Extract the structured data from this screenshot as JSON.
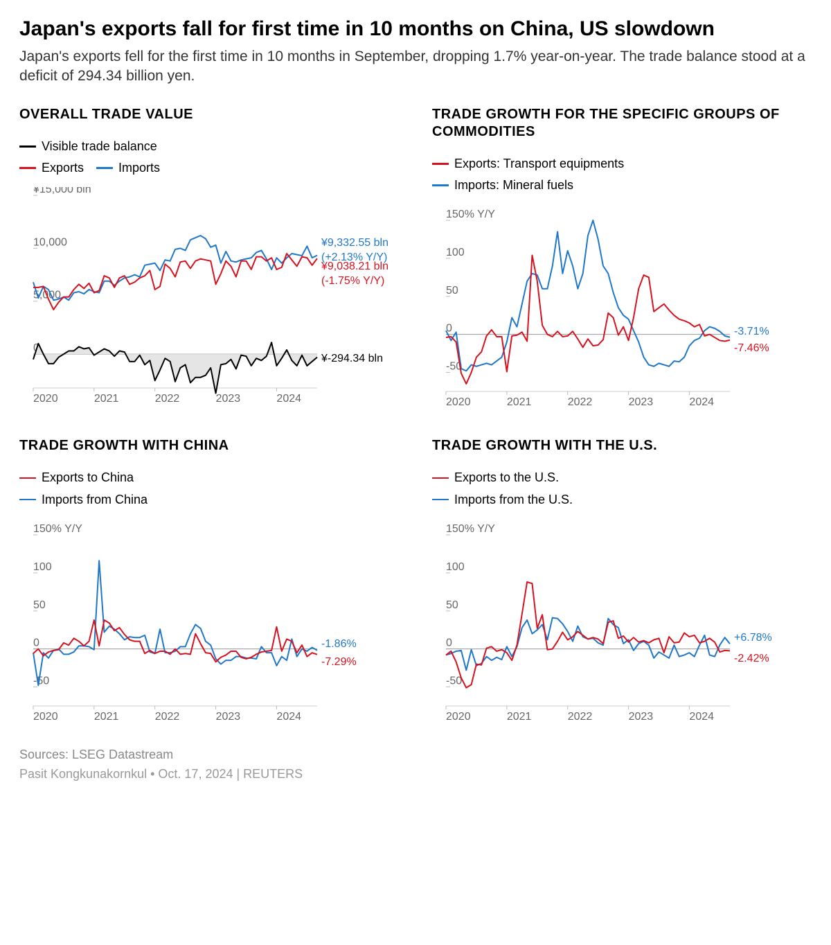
{
  "headline": "Japan's exports fall for first time in 10 months on China, US slowdown",
  "dek": "Japan's exports fell for the first time in 10 months in September, dropping 1.7% year-on-year. The trade balance stood at a deficit of 294.34 billion yen.",
  "colors": {
    "black": "#000000",
    "red": "#d6121f",
    "blue": "#1f77c9",
    "axis": "#666666",
    "grid": "#d0d0d0",
    "fill_grey": "#e5e5e5",
    "footer": "#888888"
  },
  "x_axis": {
    "years": [
      "2020",
      "2021",
      "2022",
      "2023",
      "2024"
    ],
    "n_points": 57
  },
  "panels": {
    "overall": {
      "title": "OVERALL TRADE VALUE",
      "legend": [
        {
          "color": "#000000",
          "label": "Visible trade balance"
        },
        {
          "color": "#d6121f",
          "label": "Exports"
        },
        {
          "color": "#1f77c9",
          "label": "Imports"
        }
      ],
      "y_label": "¥15,000 bln",
      "y_ticks": [
        0,
        5000,
        10000,
        15000
      ],
      "y_tick_labels": [
        "0",
        "5,000",
        "10,000",
        "¥15,000 bln"
      ],
      "ylim": [
        -3200,
        15000
      ],
      "series": {
        "exports": [
          6300,
          6300,
          6400,
          5200,
          4200,
          4900,
          5400,
          5400,
          6100,
          6600,
          6200,
          6700,
          5800,
          6000,
          7400,
          7200,
          6300,
          7200,
          7400,
          6600,
          6800,
          7200,
          7400,
          7900,
          6100,
          6400,
          8500,
          8100,
          7300,
          8700,
          8800,
          8100,
          8800,
          9000,
          8900,
          8800,
          6600,
          7600,
          8800,
          8300,
          7300,
          8800,
          8800,
          8000,
          9200,
          9200,
          8800,
          9100,
          8000,
          8200,
          9500,
          8900,
          8300,
          9200,
          9100,
          8400,
          9038
        ],
        "imports": [
          6800,
          5300,
          6400,
          6100,
          5100,
          5200,
          5400,
          5100,
          5800,
          5900,
          5700,
          6100,
          5900,
          5800,
          6900,
          6900,
          6500,
          6900,
          7200,
          7300,
          7500,
          7300,
          8400,
          8500,
          8600,
          7900,
          8900,
          8800,
          9900,
          10000,
          9800,
          10800,
          11000,
          11200,
          10900,
          10100,
          10300,
          8600,
          9700,
          8800,
          8700,
          8900,
          9000,
          9100,
          9600,
          9800,
          9000,
          8000,
          9100,
          8600,
          9100,
          9500,
          9400,
          9300,
          10200,
          9100,
          9333
        ],
        "balance": [
          -500,
          1000,
          0,
          -900,
          -900,
          -300,
          0,
          300,
          300,
          700,
          500,
          600,
          -100,
          200,
          500,
          300,
          -200,
          300,
          200,
          -700,
          -700,
          -100,
          -1000,
          -600,
          -2500,
          -1500,
          -400,
          -700,
          -2600,
          -1300,
          -1000,
          -2700,
          -2200,
          -2200,
          -2000,
          -1300,
          -3700,
          -1000,
          -900,
          -500,
          -1400,
          -100,
          -200,
          -1100,
          -400,
          -600,
          -200,
          1100,
          -1100,
          -400,
          400,
          -600,
          -1100,
          -100,
          -1100,
          -700,
          -294
        ]
      },
      "end_labels": {
        "imports": {
          "l1": "¥9,332.55 bln",
          "l2": "(+2.13% Y/Y)",
          "color": "#1f77c9"
        },
        "exports": {
          "l1": "¥9,038.21 bln",
          "l2": "(-1.75% Y/Y)",
          "color": "#d6121f"
        },
        "balance": {
          "l1": "¥-294.34 bln",
          "color": "#000000"
        }
      }
    },
    "commodities": {
      "title": "TRADE GROWTH FOR THE SPECIFIC GROUPS OF COMMODITIES",
      "legend": [
        {
          "color": "#d6121f",
          "label": "Exports: Transport equipments"
        },
        {
          "color": "#1f77c9",
          "label": "Imports: Mineral fuels"
        }
      ],
      "y_label": "150% Y/Y",
      "y_ticks": [
        -50,
        0,
        50,
        100,
        150
      ],
      "ylim": [
        -75,
        160
      ],
      "series": {
        "red": [
          -4,
          -3,
          -10,
          -51,
          -65,
          -50,
          -30,
          -23,
          -2,
          6,
          -3,
          -3,
          -49,
          -2,
          -1,
          3,
          -9,
          104,
          70,
          12,
          0,
          -3,
          4,
          -3,
          -2,
          4,
          -6,
          -17,
          -6,
          -15,
          -14,
          -7,
          28,
          22,
          -1,
          10,
          -8,
          22,
          60,
          78,
          75,
          30,
          35,
          40,
          32,
          25,
          20,
          18,
          15,
          10,
          13,
          -2,
          0,
          -4,
          -8,
          -9,
          -7.46
        ],
        "blue": [
          5,
          -8,
          3,
          -45,
          -48,
          -40,
          -42,
          -40,
          -38,
          -40,
          -35,
          -30,
          -10,
          22,
          10,
          40,
          70,
          80,
          78,
          60,
          60,
          90,
          135,
          80,
          110,
          90,
          60,
          80,
          130,
          150,
          125,
          90,
          80,
          55,
          35,
          25,
          20,
          5,
          -10,
          -30,
          -40,
          -42,
          -38,
          -40,
          -42,
          -35,
          -36,
          -30,
          -15,
          -8,
          -5,
          5,
          10,
          8,
          4,
          -2,
          -3.71
        ]
      },
      "end_labels": {
        "blue": {
          "l1": "-3.71%",
          "color": "#1f77c9"
        },
        "red": {
          "l1": "-7.46%",
          "color": "#d6121f"
        }
      }
    },
    "china": {
      "title": "TRADE GROWTH WITH CHINA",
      "legend": [
        {
          "color": "#d6121f",
          "label": "Exports to China"
        },
        {
          "color": "#1f77c9",
          "label": "Imports from China"
        }
      ],
      "y_label": "150% Y/Y",
      "y_ticks": [
        -50,
        0,
        50,
        100,
        150
      ],
      "ylim": [
        -75,
        160
      ],
      "series": {
        "red": [
          -6,
          0,
          -9,
          -4,
          -2,
          -1,
          8,
          5,
          14,
          10,
          4,
          10,
          38,
          4,
          38,
          34,
          24,
          28,
          19,
          12,
          10,
          10,
          -6,
          -2,
          -6,
          -3,
          -3,
          -7,
          0,
          -7,
          -6,
          -7,
          20,
          7,
          -5,
          -6,
          -17,
          -11,
          -8,
          -3,
          -3,
          -11,
          -13,
          -11,
          -7,
          -4,
          -3,
          -2,
          29,
          -3,
          13,
          10,
          -5,
          5,
          -10,
          -5,
          -7.29
        ],
        "blue": [
          -5,
          -48,
          -5,
          -12,
          -2,
          0,
          -7,
          -7,
          -4,
          4,
          4,
          3,
          -1,
          116,
          22,
          30,
          26,
          20,
          12,
          16,
          15,
          15,
          18,
          -4,
          -6,
          26,
          -5,
          -5,
          -3,
          3,
          3,
          20,
          32,
          27,
          10,
          5,
          -13,
          -20,
          -15,
          -15,
          -10,
          -10,
          -12,
          -12,
          -13,
          3,
          -5,
          -5,
          -22,
          -10,
          -15,
          13,
          -10,
          0,
          -3,
          2,
          -1.86
        ]
      },
      "end_labels": {
        "blue": {
          "l1": "-1.86%",
          "color": "#1f77c9"
        },
        "red": {
          "l1": "-7.29%",
          "color": "#d6121f"
        }
      }
    },
    "us": {
      "title": "TRADE GROWTH WITH THE U.S.",
      "legend": [
        {
          "color": "#d6121f",
          "label": "Exports to the U.S."
        },
        {
          "color": "#1f77c9",
          "label": "Imports from the U.S."
        }
      ],
      "y_label": "150% Y/Y",
      "y_ticks": [
        -50,
        0,
        50,
        100,
        150
      ],
      "ylim": [
        -75,
        160
      ],
      "series": {
        "red": [
          -8,
          -3,
          -17,
          -38,
          -51,
          -47,
          -20,
          -21,
          1,
          3,
          -3,
          -1,
          -5,
          -15,
          5,
          46,
          88,
          86,
          27,
          45,
          -1,
          0,
          10,
          22,
          12,
          16,
          23,
          18,
          13,
          15,
          13,
          7,
          35,
          37,
          14,
          17,
          9,
          15,
          9,
          11,
          8,
          12,
          14,
          -5,
          16,
          8,
          9,
          21,
          16,
          18,
          8,
          10,
          14,
          9,
          -4,
          -2,
          -2.42
        ],
        "blue": [
          -8,
          -6,
          -3,
          -2,
          -28,
          -1,
          -22,
          -19,
          -10,
          -15,
          -11,
          -14,
          3,
          -10,
          3,
          28,
          38,
          20,
          25,
          32,
          12,
          41,
          40,
          33,
          23,
          10,
          30,
          16,
          13,
          14,
          8,
          5,
          40,
          32,
          28,
          7,
          12,
          -2,
          7,
          10,
          5,
          -12,
          -4,
          -8,
          -12,
          5,
          -10,
          -8,
          -5,
          -10,
          5,
          18,
          -8,
          -10,
          5,
          15,
          6.78
        ]
      },
      "end_labels": {
        "blue": {
          "l1": "+6.78%",
          "color": "#1f77c9"
        },
        "red": {
          "l1": "-2.42%",
          "color": "#d6121f"
        }
      }
    }
  },
  "footer": {
    "sources": "Sources: LSEG Datastream",
    "byline": "Pasit Kongkunakornkul • Oct. 17, 2024 | REUTERS"
  }
}
